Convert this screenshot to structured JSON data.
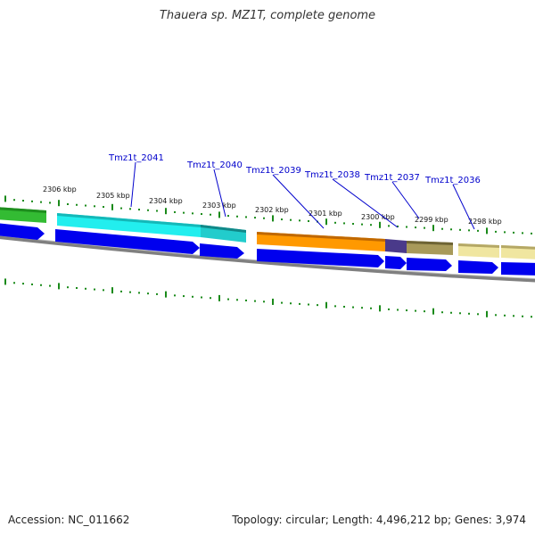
{
  "title": "Thauera sp. MZ1T, complete genome",
  "accession": "Accession: NC_011662",
  "summary": "Topology: circular; Length: 4,496,212 bp; Genes: 3,974",
  "ticks": [
    "2306 kbp",
    "2305 kbp",
    "2304 kbp",
    "2303 kbp",
    "2302 kbp",
    "2301 kbp",
    "2300 kbp",
    "2299 kbp",
    "2298 kbp"
  ],
  "genes": [
    "Tmz1t_2041",
    "Tmz1t_2040",
    "Tmz1t_2039",
    "Tmz1t_2038",
    "Tmz1t_2037",
    "Tmz1t_2036"
  ],
  "colors": {
    "cds": "#0000ee",
    "backbone": "#808080",
    "tick": "#1a8a1a",
    "label": "#0000cc",
    "green": "#33bb33",
    "cyan": "#22eeee",
    "teal": "#22cccc",
    "orange": "#ff9900",
    "purple": "#4a3a8a",
    "olive": "#a89a5a",
    "khaki": "#f0e6a0"
  }
}
